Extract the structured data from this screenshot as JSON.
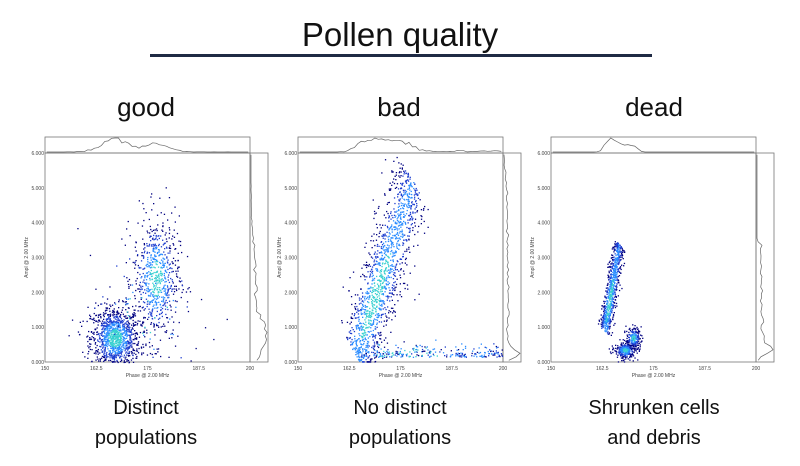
{
  "title": "Pollen quality",
  "panels": [
    {
      "label": "good",
      "caption_line1": "Distinct",
      "caption_line2": "populations"
    },
    {
      "label": "bad",
      "caption_line1": "No distinct",
      "caption_line2": "populations"
    },
    {
      "label": "dead",
      "caption_line1": "Shrunken cells",
      "caption_line2": "and debris"
    }
  ],
  "chart_data": [
    {
      "type": "scatter",
      "title": "good",
      "xlabel": "Phase @ 2.00 MHz",
      "ylabel": "Ampl @ 2.00 MHz",
      "xlim": [
        150,
        200
      ],
      "ylim": [
        0,
        6
      ],
      "xticks": [
        "150",
        "162.5",
        "175",
        "187.5",
        "200"
      ],
      "yticks": [
        "0.000",
        "1.000",
        "2.000",
        "3.000",
        "4.000",
        "5.000",
        "6.000"
      ],
      "marginal_histograms": true,
      "colormap": [
        "#000080",
        "#1f3fd0",
        "#2a8cff",
        "#38d0d0"
      ],
      "clusters": [
        {
          "x": 167,
          "y": 0.7,
          "sx": 3.0,
          "sy": 0.45,
          "n": 1100
        },
        {
          "x": 177,
          "y": 2.4,
          "sx": 2.8,
          "sy": 0.9,
          "n": 650
        },
        {
          "x": 175,
          "y": 1.5,
          "sx": 9.0,
          "sy": 1.2,
          "n": 80
        }
      ]
    },
    {
      "type": "scatter",
      "title": "bad",
      "xlabel": "Phase @ 2.00 MHz",
      "ylabel": "Ampl @ 2.00 MHz",
      "xlim": [
        150,
        200
      ],
      "ylim": [
        0,
        6
      ],
      "xticks": [
        "150",
        "162.5",
        "175",
        "187.5",
        "200"
      ],
      "yticks": [
        "0.000",
        "1.000",
        "2.000",
        "3.000",
        "4.000",
        "5.000",
        "6.000"
      ],
      "marginal_histograms": true,
      "colormap": [
        "#000080",
        "#1f3fd0",
        "#2a8cff",
        "#38d0d0"
      ],
      "bands": [
        {
          "from": [
            164,
            0.2
          ],
          "to": [
            178,
            5.2
          ],
          "width": 1.8,
          "n": 1300
        },
        {
          "from": [
            165,
            0.15
          ],
          "to": [
            200,
            0.15
          ],
          "width": 0.15,
          "n": 250
        }
      ]
    },
    {
      "type": "scatter",
      "title": "dead",
      "xlabel": "Phase @ 2.00 MHz",
      "ylabel": "Ampl @ 2.00 MHz",
      "xlim": [
        150,
        200
      ],
      "ylim": [
        0,
        6
      ],
      "xticks": [
        "150",
        "162.5",
        "175",
        "187.5",
        "200"
      ],
      "yticks": [
        "0.000",
        "1.000",
        "2.000",
        "3.000",
        "4.000",
        "5.000",
        "6.000"
      ],
      "marginal_histograms": true,
      "colormap": [
        "#000080",
        "#1f3fd0",
        "#2a8cff",
        "#38d0d0"
      ],
      "bands": [
        {
          "from": [
            163,
            0.9
          ],
          "to": [
            166.5,
            3.4
          ],
          "width": 0.7,
          "n": 700
        }
      ],
      "clusters": [
        {
          "x": 168,
          "y": 0.35,
          "sx": 1.3,
          "sy": 0.12,
          "n": 300
        },
        {
          "x": 170,
          "y": 0.7,
          "sx": 0.9,
          "sy": 0.15,
          "n": 180
        }
      ]
    }
  ]
}
